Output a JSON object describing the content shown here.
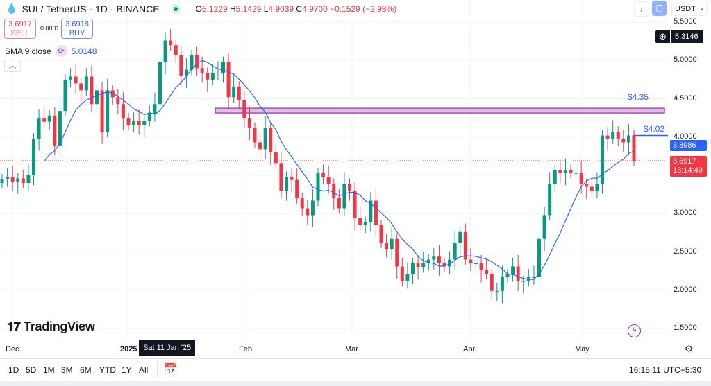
{
  "header": {
    "symbol": "SUI / TetherUS · 1D · BINANCE",
    "o_label": "O",
    "o": "5.1229",
    "h_label": "H",
    "h": "5.1429",
    "l_label": "L",
    "l": "4.9039",
    "c_label": "C",
    "c": "4.9700",
    "change": "−0.1529 (−2.98%)"
  },
  "trade": {
    "sell_price": "3.6917",
    "sell_label": "SELL",
    "spread": "0.0001",
    "buy_price": "3.6918",
    "buy_label": "BUY"
  },
  "indicator": {
    "label": "SMA 9 close",
    "value": "5.0148"
  },
  "toolbar": {
    "currency": "USDT"
  },
  "price_axis": [
    "5.5000",
    "5.0000",
    "4.5000",
    "4.0000",
    "3.0000",
    "2.5000",
    "2.0000",
    "1.5000"
  ],
  "crosshair_price": "5.3146",
  "sma_price": "3.8986",
  "last_price": "3.6917",
  "countdown": "13:14:49",
  "annotations": {
    "zone_label": "$4.35",
    "line_label": "$4.02",
    "zone_price": 4.35,
    "line_price": 4.02
  },
  "time_axis": [
    {
      "label": "Dec"
    },
    {
      "label": "2025"
    },
    {
      "label": "Feb"
    },
    {
      "label": "Mar"
    },
    {
      "label": "Apr"
    },
    {
      "label": "May"
    }
  ],
  "crosshair_date": "Sat 11 Jan '25",
  "logo": "TradingView",
  "ranges": [
    "1D",
    "5D",
    "1M",
    "3M",
    "6M",
    "YTD",
    "1Y",
    "All"
  ],
  "clock": "16:15:11 UTC+5:30",
  "colors": {
    "up": "#089981",
    "down": "#f23645",
    "sma": "#2962ff",
    "zone": "#e1bee7"
  },
  "chart_data": {
    "type": "candlestick",
    "ylim": [
      1.4,
      5.6
    ],
    "sma_period": 9,
    "closes": [
      3.45,
      3.48,
      3.42,
      3.46,
      3.4,
      3.5,
      3.98,
      4.25,
      4.2,
      4.28,
      3.89,
      4.34,
      4.75,
      4.79,
      4.7,
      4.61,
      4.79,
      4.43,
      4.61,
      4.07,
      4.61,
      4.52,
      4.43,
      4.25,
      4.16,
      4.21,
      4.16,
      4.21,
      4.3,
      4.43,
      4.98,
      5.26,
      5.2,
      5.07,
      4.8,
      4.88,
      5.07,
      4.9,
      4.84,
      4.75,
      4.84,
      4.84,
      4.98,
      4.52,
      4.66,
      4.48,
      4.25,
      4.12,
      3.93,
      3.84,
      4.12,
      3.8,
      3.66,
      3.3,
      3.48,
      3.44,
      3.2,
      3.07,
      2.98,
      3.17,
      3.53,
      3.48,
      3.39,
      3.21,
      3.07,
      3.39,
      3.3,
      2.94,
      2.85,
      2.89,
      3.17,
      2.85,
      2.62,
      2.53,
      2.67,
      2.31,
      2.12,
      2.21,
      2.35,
      2.3,
      2.35,
      2.4,
      2.44,
      2.35,
      2.31,
      2.4,
      2.62,
      2.76,
      2.4,
      2.35,
      2.35,
      2.26,
      2.21,
      1.99,
      1.99,
      2.17,
      2.21,
      2.31,
      2.12,
      2.12,
      2.17,
      2.17,
      2.67,
      2.98,
      3.39,
      3.57,
      3.53,
      3.57,
      3.53,
      3.53,
      3.39,
      3.35,
      3.3,
      3.39,
      4.02,
      3.98,
      4.07,
      3.98,
      3.93,
      4.02,
      3.69
    ]
  }
}
